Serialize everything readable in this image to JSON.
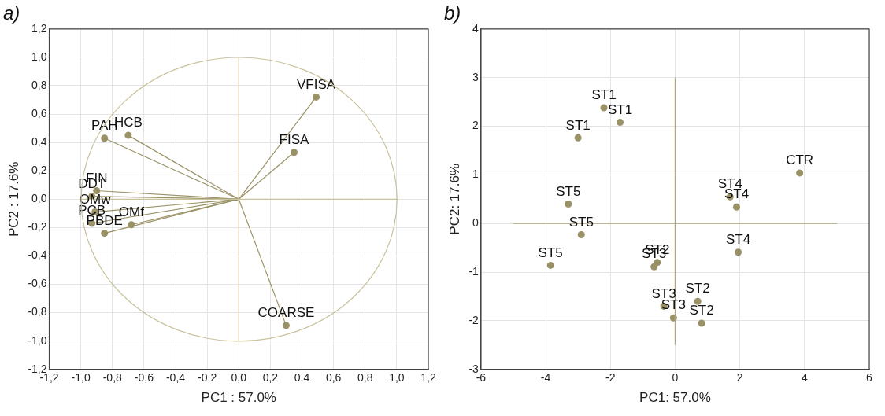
{
  "chart_data": [
    {
      "type": "scatter",
      "title": "a)",
      "xlabel": "PC1 : 57.0%",
      "ylabel": "PC2 : 17.6%",
      "grid": true,
      "legend": false,
      "xlim": [
        -1.2,
        1.2
      ],
      "ylim": [
        -1.2,
        1.2
      ],
      "xticks": [
        {
          "value": -1.2,
          "label": "-1,2"
        },
        {
          "value": -1,
          "label": "-1,0"
        },
        {
          "value": -0.8,
          "label": "-0,8"
        },
        {
          "value": -0.6,
          "label": "-0,6"
        },
        {
          "value": -0.4,
          "label": "-0,4"
        },
        {
          "value": -0.2,
          "label": "-0,2"
        },
        {
          "value": 0,
          "label": "0,0"
        },
        {
          "value": 0.2,
          "label": "0,2"
        },
        {
          "value": 0.4,
          "label": "0,4"
        },
        {
          "value": 0.6,
          "label": "0,6"
        },
        {
          "value": 0.8,
          "label": "0,8"
        },
        {
          "value": 1,
          "label": "1,0"
        },
        {
          "value": 1.2,
          "label": "1,2"
        }
      ],
      "yticks": [
        {
          "value": -1.2,
          "label": "-1,2"
        },
        {
          "value": -1,
          "label": "-1,0"
        },
        {
          "value": -0.8,
          "label": "-0,8"
        },
        {
          "value": -0.6,
          "label": "-0,6"
        },
        {
          "value": -0.4,
          "label": "-0,4"
        },
        {
          "value": -0.2,
          "label": "-0,2"
        },
        {
          "value": 0,
          "label": "0,0"
        },
        {
          "value": 0.2,
          "label": "0,2"
        },
        {
          "value": 0.4,
          "label": "0,4"
        },
        {
          "value": 0.6,
          "label": "0,6"
        },
        {
          "value": 0.8,
          "label": "0,8"
        },
        {
          "value": 1,
          "label": "1,0"
        },
        {
          "value": 1.2,
          "label": "1,2"
        }
      ],
      "series": [
        {
          "type": "line",
          "color": "#c9c29c",
          "x": [
            -1,
            1
          ],
          "values": [
            0,
            0
          ]
        },
        {
          "type": "line",
          "color": "#c9c29c",
          "x": [
            0,
            0
          ],
          "values": [
            -1,
            1
          ]
        },
        {
          "type": "line",
          "color": "#9a9266",
          "x": [
            0,
            0.49
          ],
          "values": [
            0,
            0.72
          ]
        },
        {
          "type": "line",
          "color": "#9a9266",
          "x": [
            0,
            0.35
          ],
          "values": [
            0,
            0.33
          ]
        },
        {
          "type": "line",
          "color": "#9a9266",
          "x": [
            0,
            0.3
          ],
          "values": [
            0,
            -0.89
          ]
        },
        {
          "type": "line",
          "color": "#9a9266",
          "x": [
            0,
            -0.85
          ],
          "values": [
            0,
            0.43
          ]
        },
        {
          "type": "line",
          "color": "#9a9266",
          "x": [
            0,
            -0.7
          ],
          "values": [
            0,
            0.45
          ]
        },
        {
          "type": "line",
          "color": "#9a9266",
          "x": [
            0,
            -0.9
          ],
          "values": [
            0,
            0.06
          ]
        },
        {
          "type": "line",
          "color": "#9a9266",
          "x": [
            0,
            -0.93
          ],
          "values": [
            0,
            0.02
          ]
        },
        {
          "type": "line",
          "color": "#9a9266",
          "x": [
            0,
            -0.91
          ],
          "values": [
            0,
            -0.09
          ]
        },
        {
          "type": "line",
          "color": "#9a9266",
          "x": [
            0,
            -0.93
          ],
          "values": [
            0,
            -0.17
          ]
        },
        {
          "type": "line",
          "color": "#9a9266",
          "x": [
            0,
            -0.68
          ],
          "values": [
            0,
            -0.18
          ]
        },
        {
          "type": "line",
          "color": "#9a9266",
          "x": [
            0,
            -0.85
          ],
          "values": [
            0,
            -0.24
          ]
        },
        {
          "type": "scatter",
          "marker": "circle",
          "color": "#9a9266",
          "x": [
            0.49,
            0.35,
            0.3,
            -0.85,
            -0.7,
            -0.9,
            -0.93,
            -0.91,
            -0.93,
            -0.68,
            -0.85
          ],
          "values": [
            0.72,
            0.33,
            -0.89,
            0.43,
            0.45,
            0.06,
            0.02,
            -0.09,
            -0.17,
            -0.18,
            -0.24
          ]
        }
      ],
      "annotations": [
        {
          "text": "VFISA",
          "x": 0.49,
          "y": 0.72
        },
        {
          "text": "FISA",
          "x": 0.35,
          "y": 0.33
        },
        {
          "text": "COARSE",
          "x": 0.3,
          "y": -0.89
        },
        {
          "text": "PAH",
          "x": -0.85,
          "y": 0.43
        },
        {
          "text": "HCB",
          "x": -0.7,
          "y": 0.45
        },
        {
          "text": "FIN",
          "x": -0.9,
          "y": 0.06
        },
        {
          "text": "DDT",
          "x": -0.93,
          "y": 0.02
        },
        {
          "text": "OMw",
          "x": -0.91,
          "y": -0.09
        },
        {
          "text": "PCB",
          "x": -0.93,
          "y": -0.17
        },
        {
          "text": "OMf",
          "x": -0.68,
          "y": -0.18
        },
        {
          "text": "PBDE",
          "x": -0.85,
          "y": -0.24
        }
      ]
    },
    {
      "type": "scatter",
      "title": "b)",
      "xlabel": "PC1: 57.0%",
      "ylabel": "PC2: 17.6%",
      "grid": true,
      "legend": false,
      "xlim": [
        -6,
        6
      ],
      "ylim": [
        -3,
        4
      ],
      "xticks": [
        -6,
        -4,
        -2,
        0,
        2,
        4,
        6
      ],
      "yticks": [
        -3,
        -2,
        -1,
        0,
        1,
        2,
        3,
        4
      ],
      "series": [
        {
          "type": "line",
          "color": "#b0a67a",
          "x": [
            -5,
            5
          ],
          "values": [
            0,
            0
          ]
        },
        {
          "type": "line",
          "color": "#b0a67a",
          "x": [
            0,
            0
          ],
          "values": [
            -2.5,
            3
          ]
        },
        {
          "type": "scatter",
          "marker": "circle",
          "color": "#9a9266",
          "x": [
            -2.2,
            -1.7,
            -3,
            3.85,
            1.7,
            1.9,
            1.95,
            -3.3,
            -2.9,
            -3.85,
            -0.55,
            -0.65,
            -0.35,
            0.7,
            -0.05,
            0.82
          ],
          "values": [
            2.38,
            2.08,
            1.76,
            1.04,
            0.55,
            0.34,
            -0.59,
            0.4,
            -0.23,
            -0.86,
            -0.8,
            -0.89,
            -1.7,
            -1.6,
            -1.94,
            -2.05
          ]
        }
      ],
      "annotations": [
        {
          "text": "ST1",
          "x": -2.2,
          "y": 2.38
        },
        {
          "text": "ST1",
          "x": -1.7,
          "y": 2.08
        },
        {
          "text": "ST1",
          "x": -3,
          "y": 1.76
        },
        {
          "text": "CTR",
          "x": 3.85,
          "y": 1.04
        },
        {
          "text": "ST4",
          "x": 1.7,
          "y": 0.55
        },
        {
          "text": "ST4",
          "x": 1.9,
          "y": 0.34
        },
        {
          "text": "ST4",
          "x": 1.95,
          "y": -0.59
        },
        {
          "text": "ST5",
          "x": -3.3,
          "y": 0.4
        },
        {
          "text": "ST5",
          "x": -2.9,
          "y": -0.23
        },
        {
          "text": "ST5",
          "x": -3.85,
          "y": -0.86
        },
        {
          "text": "ST2",
          "x": -0.55,
          "y": -0.8
        },
        {
          "text": "ST3",
          "x": -0.65,
          "y": -0.89
        },
        {
          "text": "ST3",
          "x": -0.35,
          "y": -1.7
        },
        {
          "text": "ST2",
          "x": 0.7,
          "y": -1.6
        },
        {
          "text": "ST3",
          "x": -0.05,
          "y": -1.94
        },
        {
          "text": "ST2",
          "x": 0.82,
          "y": -2.05
        }
      ]
    }
  ]
}
